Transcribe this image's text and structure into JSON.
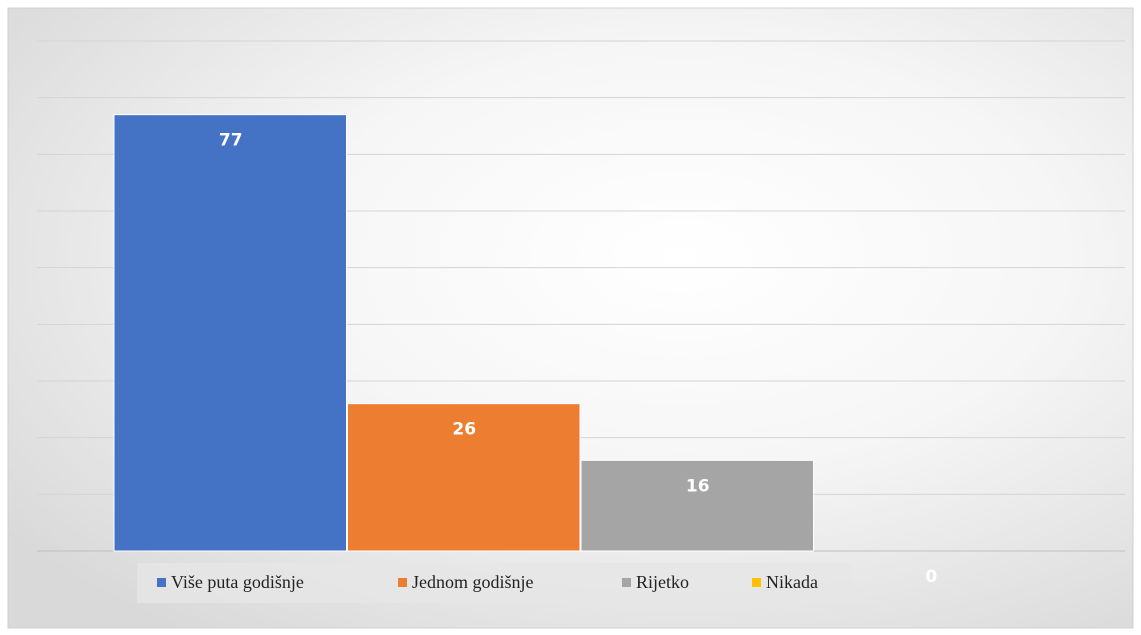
{
  "chart_data": {
    "type": "bar",
    "series": [
      {
        "name": "Više puta godišnje",
        "color": "#4472c4",
        "values": [
          77
        ]
      },
      {
        "name": "Jednom godišnje",
        "color": "#ed7d31",
        "values": [
          26
        ]
      },
      {
        "name": "Rijetko",
        "color": "#a5a5a5",
        "values": [
          16
        ]
      },
      {
        "name": "Nikada",
        "color": "#ffc000",
        "values": [
          0
        ]
      }
    ],
    "ylim": [
      0,
      90
    ],
    "yticks": [
      0,
      10,
      20,
      30,
      40,
      50,
      60,
      70,
      80,
      90
    ],
    "grid": true,
    "legend": "bottom"
  }
}
